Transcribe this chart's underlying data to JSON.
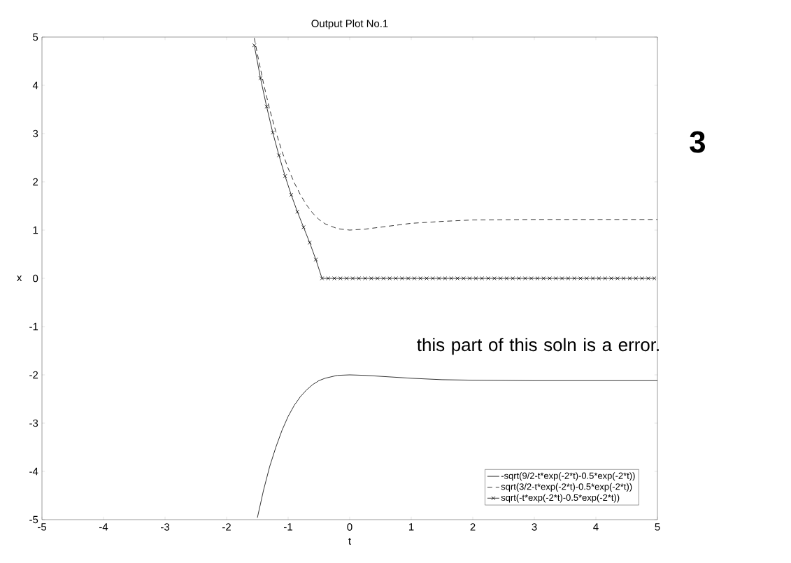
{
  "chart_data": {
    "type": "line",
    "title": "Output Plot No.1",
    "xlabel": "t",
    "ylabel": "x",
    "xlim": [
      -5,
      5
    ],
    "ylim": [
      -5,
      5
    ],
    "xticks": [
      -5,
      -4,
      -3,
      -2,
      -1,
      0,
      1,
      2,
      3,
      4,
      5
    ],
    "yticks": [
      -5,
      -4,
      -3,
      -2,
      -1,
      0,
      1,
      2,
      3,
      4,
      5
    ],
    "legend": "bottom right",
    "grid": false,
    "series": [
      {
        "name": "-sqrt(9/2-t*exp(-2*t)-0.5*exp(-2*t))",
        "color": "#000000",
        "line_style": "solid",
        "marker": "none",
        "x": [
          -1.5,
          -1.4,
          -1.3,
          -1.2,
          -1.1,
          -1.0,
          -0.9,
          -0.8,
          -0.7,
          -0.6,
          -0.5,
          -0.4,
          -0.2,
          0,
          0.25,
          0.5,
          1,
          1.5,
          2,
          3,
          4,
          5
        ],
        "values": [
          -4.96,
          -4.39,
          -3.9,
          -3.5,
          -3.15,
          -2.86,
          -2.63,
          -2.45,
          -2.31,
          -2.2,
          -2.12,
          -2.07,
          -2.01,
          -2.0,
          -2.01,
          -2.03,
          -2.07,
          -2.1,
          -2.11,
          -2.12,
          -2.12,
          -2.12
        ]
      },
      {
        "name": "sqrt(3/2-t*exp(-2*t)-0.5*exp(-2*t))",
        "color": "#000000",
        "line_style": "dashed",
        "marker": "none",
        "x": [
          -1.55,
          -1.5,
          -1.4,
          -1.3,
          -1.2,
          -1.1,
          -1.0,
          -0.9,
          -0.8,
          -0.7,
          -0.6,
          -0.5,
          -0.4,
          -0.2,
          0,
          0.25,
          0.5,
          1,
          1.5,
          2,
          3,
          4,
          5
        ],
        "values": [
          4.98,
          4.65,
          4.04,
          3.5,
          3.04,
          2.63,
          2.28,
          1.98,
          1.73,
          1.52,
          1.35,
          1.22,
          1.13,
          1.03,
          1.0,
          1.02,
          1.06,
          1.14,
          1.18,
          1.21,
          1.22,
          1.22,
          1.22
        ]
      },
      {
        "name": "sqrt(-t*exp(-2*t)-0.5*exp(-2*t))",
        "color": "#000000",
        "line_style": "solid",
        "marker": "cross",
        "x": [
          -1.55,
          -1.45,
          -1.35,
          -1.25,
          -1.15,
          -1.05,
          -0.95,
          -0.85,
          -0.75,
          -0.65,
          -0.55,
          -0.45,
          -0.35,
          -0.25,
          -0.15,
          -0.05,
          0.05,
          0.15,
          0.25,
          0.35,
          0.45,
          0.55,
          0.65,
          0.75,
          0.85,
          0.95,
          1.05,
          1.15,
          1.25,
          1.35,
          1.45,
          1.55,
          1.65,
          1.75,
          1.85,
          1.95,
          2.05,
          2.15,
          2.25,
          2.35,
          2.45,
          2.55,
          2.65,
          2.75,
          2.85,
          2.95,
          3.05,
          3.15,
          3.25,
          3.35,
          3.45,
          3.55,
          3.65,
          3.75,
          3.85,
          3.95,
          4.05,
          4.15,
          4.25,
          4.35,
          4.45,
          4.55,
          4.65,
          4.75,
          4.85,
          4.95
        ],
        "values": [
          4.83,
          4.15,
          3.56,
          3.02,
          2.55,
          2.12,
          1.73,
          1.38,
          1.06,
          0.74,
          0.39,
          0,
          0,
          0,
          0,
          0,
          0,
          0,
          0,
          0,
          0,
          0,
          0,
          0,
          0,
          0,
          0,
          0,
          0,
          0,
          0,
          0,
          0,
          0,
          0,
          0,
          0,
          0,
          0,
          0,
          0,
          0,
          0,
          0,
          0,
          0,
          0,
          0,
          0,
          0,
          0,
          0,
          0,
          0,
          0,
          0,
          0,
          0,
          0,
          0,
          0,
          0,
          0,
          0,
          0,
          0
        ]
      }
    ],
    "annotations": [
      "this part of this soln is a error.",
      "3"
    ]
  }
}
